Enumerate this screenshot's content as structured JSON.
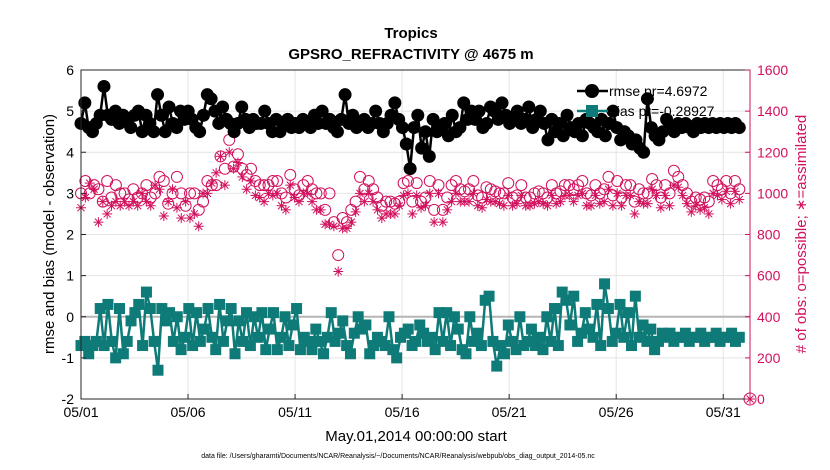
{
  "chart_data": {
    "type": "line",
    "title": "Tropics",
    "subtitle": "GPSRO_REFRACTIVITY @ 4675 m",
    "xlabel": "May.01,2014 00:00:00 start",
    "ylabel_left": "rmse and bias (model - observation)",
    "ylabel_right": "# of obs: o=possible; ∗=assimilated",
    "footnote": "data file: /Users/gharamti/Documents/NCAR/Reanalysis/~/Documents/NCAR/Reanalysis/webpub/obs_diag_output_2014-05.nc",
    "x_ticks": [
      "05/01",
      "05/06",
      "05/11",
      "05/16",
      "05/21",
      "05/26",
      "05/31"
    ],
    "x_tick_days": [
      1,
      6,
      11,
      16,
      21,
      26,
      31
    ],
    "xlim": [
      1,
      32.25
    ],
    "ylim_left": [
      -2,
      6
    ],
    "y_ticks_left": [
      "-2",
      "-1",
      "0",
      "1",
      "2",
      "3",
      "4",
      "5",
      "6"
    ],
    "ylim_right": [
      0,
      1600
    ],
    "y_ticks_right": [
      "0",
      "200",
      "400",
      "600",
      "800",
      "1000",
      "1200",
      "1400",
      "1600"
    ],
    "legend_location": "top-right",
    "colors": {
      "rmse": "#000000",
      "bias": "#0e7b78",
      "obs": "#d2115e",
      "grid": "#e4e4e4",
      "zero": "#b5b5b5"
    },
    "series": [
      {
        "name": "rmse",
        "legend": "rmse pr=4.6972",
        "values": [
          4.7,
          5.2,
          4.6,
          4.5,
          4.7,
          4.9,
          5.6,
          4.9,
          4.8,
          5.0,
          4.7,
          4.9,
          4.8,
          4.6,
          4.9,
          5.0,
          4.5,
          4.9,
          4.7,
          4.5,
          5.4,
          4.9,
          4.5,
          5.1,
          4.7,
          4.6,
          5.0,
          4.8,
          5.0,
          4.8,
          4.6,
          4.5,
          4.9,
          5.4,
          5.3,
          5.0,
          4.7,
          5.1,
          4.8,
          4.7,
          4.5,
          4.7,
          5.1,
          4.8,
          4.6,
          4.8,
          4.7,
          4.7,
          5.0,
          4.7,
          4.5,
          4.8,
          4.5,
          4.7,
          4.8,
          4.6,
          4.7,
          4.6,
          4.8,
          4.7,
          4.6,
          4.9,
          4.7,
          5.0,
          4.7,
          4.8,
          4.6,
          4.5,
          4.8,
          5.4,
          4.7,
          4.9,
          4.6,
          4.7,
          4.8,
          4.6,
          4.7,
          5.0,
          4.7,
          4.5,
          4.7,
          4.9,
          5.2,
          4.8,
          4.6,
          4.2,
          3.6,
          4.6,
          4.9,
          4.1,
          4.5,
          3.9,
          4.8,
          4.5,
          4.6,
          4.7,
          4.4,
          4.9,
          4.5,
          4.6,
          5.2,
          4.8,
          5.0,
          4.8,
          5.0,
          4.6,
          4.7,
          5.1,
          5.0,
          4.8,
          5.2,
          4.9,
          4.7,
          4.8,
          5.0,
          4.7,
          4.8,
          5.1,
          4.6,
          4.8,
          5.0,
          4.7,
          4.3,
          4.8,
          4.5,
          4.7,
          4.4,
          4.9,
          4.6,
          4.5,
          4.7,
          4.4,
          4.8,
          4.7,
          4.6,
          4.5,
          4.8,
          4.4,
          4.7,
          5.0,
          4.6,
          4.3,
          4.5,
          4.4,
          4.2,
          4.3,
          4.1,
          4.0,
          5.3,
          4.6,
          4.4,
          4.3,
          4.5,
          4.8,
          4.6,
          4.5,
          4.7,
          4.6,
          4.7,
          4.6,
          4.5,
          4.7,
          4.6,
          4.7,
          4.6,
          4.7,
          4.6,
          4.7,
          4.6,
          4.7,
          4.6,
          4.7,
          4.6
        ]
      },
      {
        "name": "bias",
        "legend": "bias pr=-0.28927",
        "values": [
          -0.7,
          -0.6,
          -0.9,
          -0.7,
          -0.6,
          0.2,
          -0.7,
          0.3,
          -0.6,
          -1.0,
          0.2,
          -0.9,
          -0.6,
          -0.1,
          0.1,
          0.3,
          -0.7,
          0.6,
          0.2,
          -0.6,
          -1.3,
          0.2,
          -0.1,
          0.1,
          -0.6,
          0.0,
          -0.8,
          -0.5,
          0.2,
          -0.7,
          0.1,
          -0.6,
          -0.3,
          0.2,
          -0.5,
          -0.8,
          0.3,
          -0.6,
          -0.1,
          0.2,
          -0.9,
          -0.1,
          -0.6,
          0.1,
          -0.7,
          0.0,
          -0.5,
          0.1,
          -0.8,
          -0.3,
          0.1,
          -0.8,
          -0.5,
          0.0,
          -0.7,
          -0.2,
          0.2,
          -0.8,
          -0.5,
          -0.6,
          -0.8,
          -0.3,
          -0.6,
          -0.9,
          -0.5,
          0.1,
          -0.6,
          -0.4,
          -0.1,
          -0.7,
          -0.9,
          -0.4,
          0.0,
          -0.3,
          -0.2,
          -0.9,
          -0.7,
          -0.5,
          -0.6,
          -0.7,
          0.0,
          -0.8,
          -1.0,
          -0.5,
          -0.4,
          -0.3,
          -0.7,
          -0.6,
          -0.2,
          -0.4,
          -0.6,
          -0.5,
          -0.8,
          0.1,
          -0.6,
          0.1,
          -0.7,
          0.0,
          -0.3,
          -0.8,
          -0.9,
          0.0,
          -0.6,
          -0.4,
          -0.7,
          0.4,
          0.5,
          -0.6,
          -1.2,
          -0.7,
          -0.9,
          -0.2,
          -0.6,
          -0.8,
          0.0,
          -0.7,
          -0.6,
          -0.3,
          -0.7,
          -0.5,
          -0.8,
          0.0,
          -0.6,
          0.2,
          -0.7,
          0.6,
          0.4,
          -0.2,
          0.5,
          -0.6,
          -0.4,
          0.1,
          -0.3,
          -0.5,
          0.3,
          -0.7,
          0.8,
          0.2,
          -0.6,
          -0.4,
          0.3,
          -0.5,
          0.1,
          -0.7,
          0.5,
          -0.5,
          -0.2,
          -0.6,
          -0.3,
          -0.8,
          -0.6,
          -0.4,
          -0.5,
          -0.4,
          -0.6,
          -0.5,
          -0.5,
          -0.4,
          -0.6,
          -0.5,
          -0.5,
          -0.4,
          -0.6,
          -0.5,
          -0.5,
          -0.4,
          -0.6,
          -0.5,
          -0.5,
          -0.4,
          -0.6,
          -0.5
        ]
      },
      {
        "name": "possible",
        "axis": "right",
        "values": [
          1000,
          1060,
          1000,
          1040,
          1020,
          960,
          1060,
          980,
          1040,
          1000,
          1000,
          970,
          1020,
          980,
          1000,
          1040,
          980,
          1000,
          1080,
          1060,
          950,
          1000,
          1080,
          1000,
          940,
          1000,
          1000,
          920,
          960,
          1060,
          1040,
          1040,
          1180,
          1120,
          1260,
          1130,
          1190,
          1120,
          1090,
          1120,
          1060,
          1040,
          1040,
          1040,
          1060,
          1060,
          1000,
          980,
          1090,
          1020,
          990,
          1040,
          1060,
          1020,
          1000,
          1000,
          920,
          1000,
          860,
          700,
          880,
          860,
          920,
          960,
          1080,
          1020,
          1060,
          1020,
          980,
          940,
          960,
          960,
          950,
          960,
          1050,
          1060,
          960,
          1050,
          960,
          980,
          1060,
          920,
          1040,
          920,
          980,
          1040,
          1060,
          1020,
          1010,
          1020,
          1060,
          990,
          980,
          1030,
          1020,
          1010,
          1000,
          1000,
          1050,
          980,
          990,
          1040,
          980,
          980,
          1000,
          1010,
          1000,
          980,
          1040,
          1000,
          1010,
          1040,
          1040,
          1020,
          1040,
          1060,
          1000,
          990,
          1040,
          1000,
          1020,
          1080,
          990,
          1060,
          980,
          1040,
          1040,
          960,
          1020,
          1000,
          1000,
          1070,
          1040,
          980,
          1040,
          1000,
          1110,
          1080,
          1040,
          1000,
          960,
          980,
          970,
          980,
          960,
          1060,
          1040,
          1020,
          1060,
          1000,
          1060,
          1020
        ]
      },
      {
        "name": "assimilated",
        "axis": "right",
        "values": [
          930,
          980,
          1050,
          1020,
          860,
          960,
          900,
          940,
          960,
          940,
          960,
          940,
          960,
          940,
          1000,
          960,
          940,
          1040,
          1020,
          890,
          960,
          1020,
          930,
          880,
          960,
          880,
          900,
          840,
          1000,
          1000,
          1050,
          1100,
          1180,
          1040,
          1200,
          1120,
          1150,
          1080,
          1020,
          1060,
          990,
          980,
          960,
          1000,
          990,
          1000,
          940,
          920,
          1040,
          980,
          960,
          1000,
          1000,
          960,
          920,
          920,
          850,
          850,
          840,
          620,
          830,
          830,
          860,
          910,
          1000,
          960,
          1000,
          960,
          920,
          880,
          900,
          900,
          900,
          940,
          990,
          1000,
          900,
          990,
          930,
          940,
          1000,
          860,
          1000,
          860,
          920,
          960,
          1000,
          960,
          960,
          960,
          1000,
          940,
          930,
          970,
          960,
          960,
          950,
          940,
          990,
          940,
          950,
          990,
          940,
          940,
          950,
          960,
          950,
          940,
          990,
          950,
          960,
          990,
          990,
          960,
          990,
          1000,
          940,
          940,
          990,
          950,
          960,
          1020,
          940,
          1000,
          940,
          990,
          990,
          900,
          960,
          950,
          950,
          1020,
          990,
          930,
          990,
          940,
          1040,
          1030,
          990,
          950,
          910,
          940,
          920,
          930,
          900,
          1000,
          990,
          970,
          1010,
          950,
          1010,
          970
        ]
      }
    ]
  }
}
